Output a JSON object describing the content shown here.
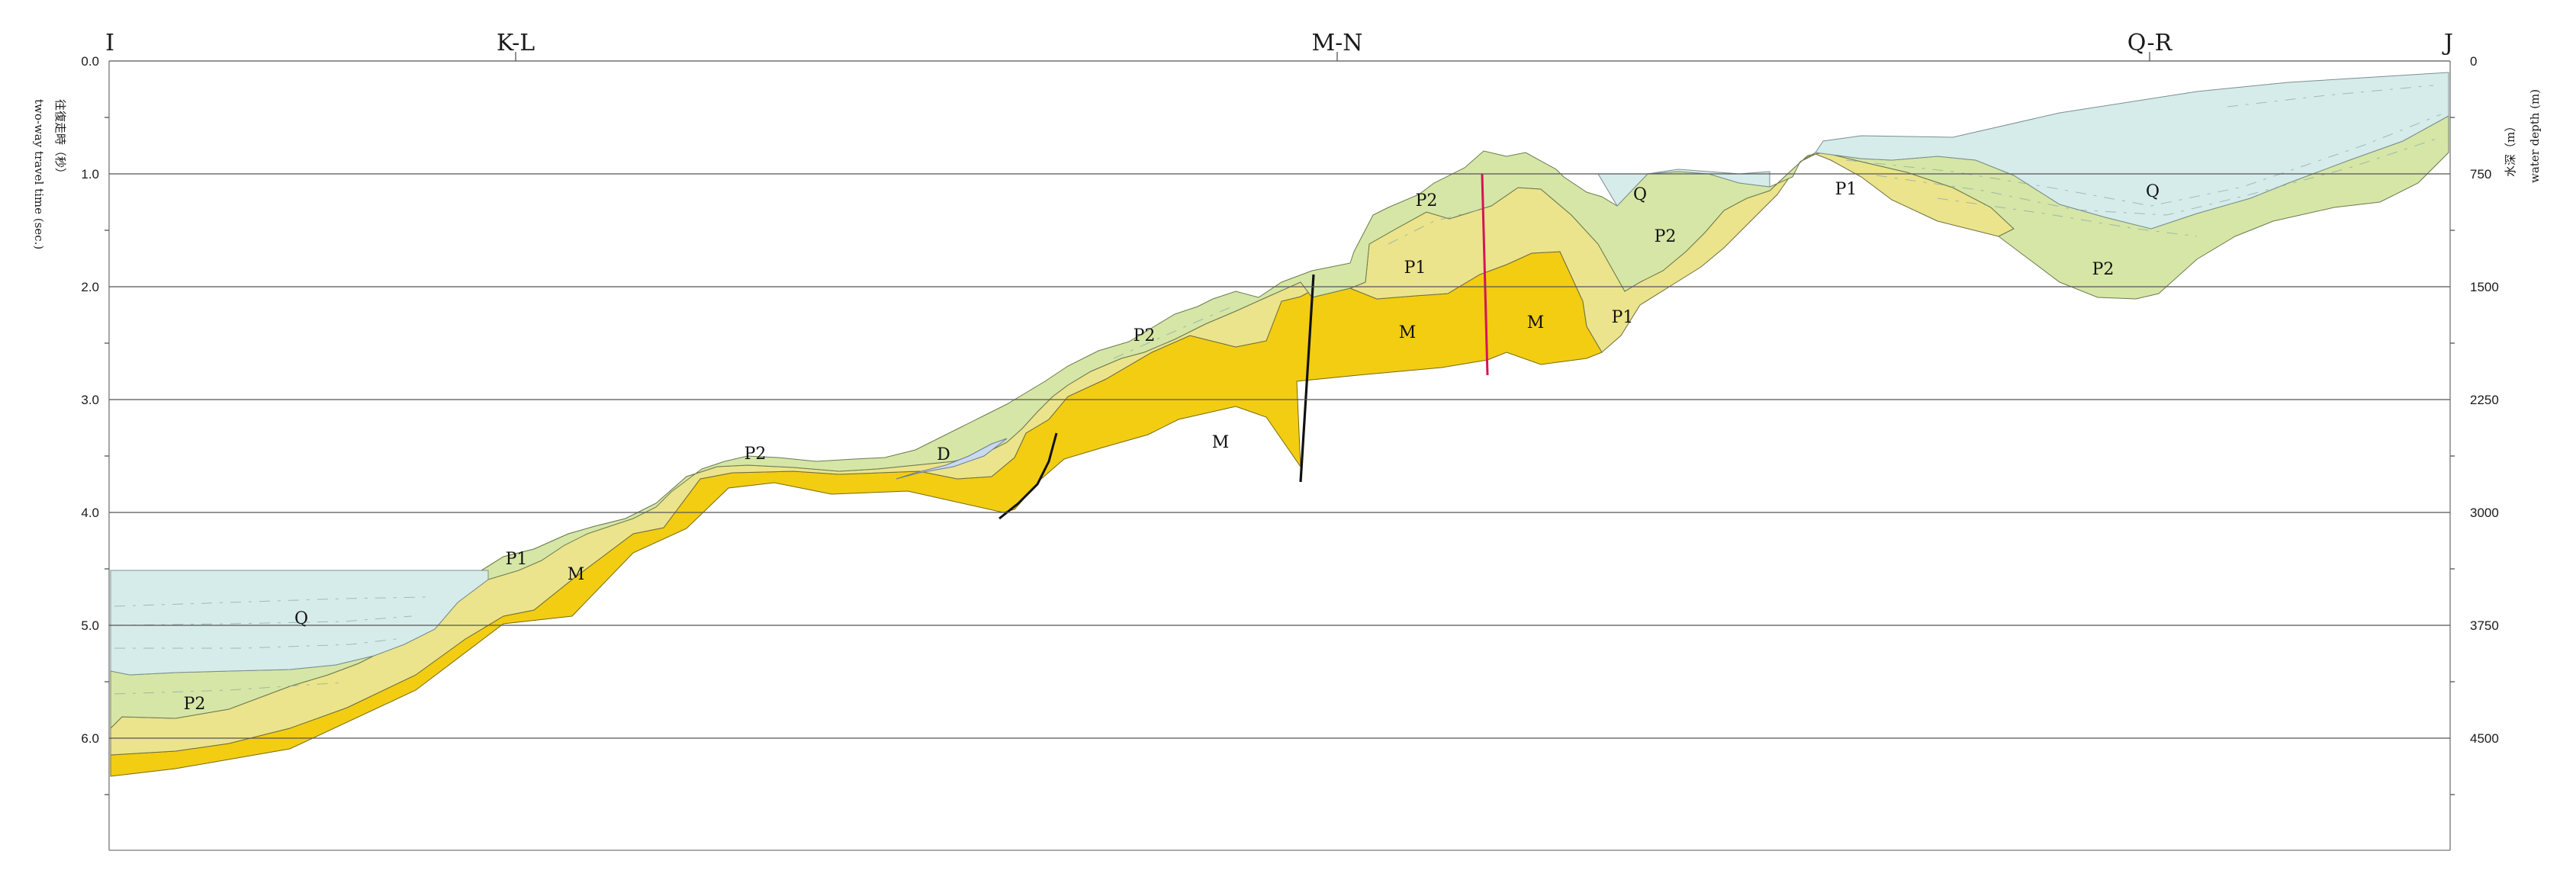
{
  "profile": {
    "endpoints": {
      "start": "I",
      "end": "J"
    },
    "crossings": [
      "K-L",
      "M-N",
      "Q-R"
    ]
  },
  "left_axis": {
    "title_cn": "往復走時（秒）",
    "title_en": "two-way travel time (sec.)",
    "ticks": [
      "0.0",
      "1.0",
      "2.0",
      "3.0",
      "4.0",
      "5.0",
      "6.0"
    ]
  },
  "right_axis": {
    "title_cn": "水深（m）",
    "title_en": "water depth (m)",
    "ticks": [
      "0",
      "750",
      "1500",
      "2250",
      "3000",
      "3750",
      "4500"
    ]
  },
  "units": {
    "Q": {
      "label": "Q",
      "color": "#d6ecea"
    },
    "P2": {
      "label": "P2",
      "color": "#d6e6a6"
    },
    "P1": {
      "label": "P1",
      "color": "#ebe48c"
    },
    "M": {
      "label": "M",
      "color": "#f2cd12"
    },
    "D": {
      "label": "D",
      "color": "#c9daee"
    }
  },
  "fault_colors": {
    "normal": "#111111",
    "highlighted": "#d4145a"
  }
}
